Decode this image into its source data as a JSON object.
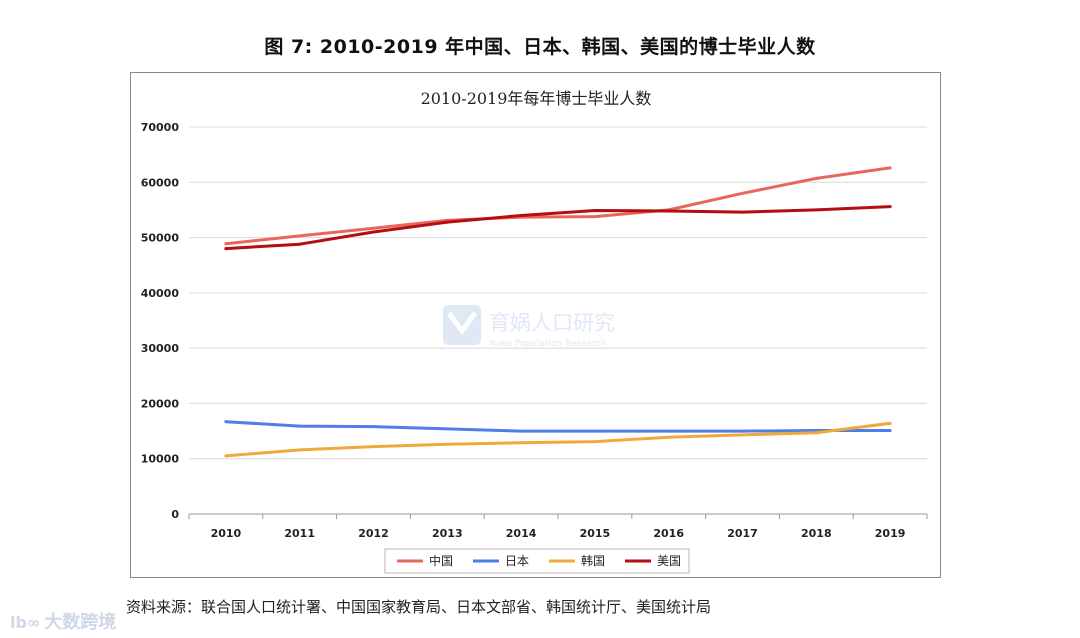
{
  "figure_title": "图 7: 2010-2019 年中国、日本、韩国、美国的博士毕业人数",
  "source_note": "资料来源：联合国人口统计署、中国国家教育局、日本文部省、韩国统计厅、美国统计局",
  "watermark": {
    "center_brand": "育娲人口研究",
    "center_sub": "Yuwa Population Research",
    "corner_brand": "大数跨境",
    "corner_logo": "lb∞"
  },
  "colors": {
    "china": "#e8675a",
    "japan": "#4f7ee8",
    "korea": "#f2a93b",
    "usa": "#b50d12",
    "grid": "#d9d9d9",
    "watermark": "#c9d6ee"
  },
  "chart_data": {
    "type": "line",
    "title": "2010-2019年每年博士毕业人数",
    "xlabel": "",
    "ylabel": "",
    "ylim": [
      0,
      70000
    ],
    "yticks": [
      "0",
      "10000",
      "20000",
      "30000",
      "40000",
      "50000",
      "60000",
      "70000"
    ],
    "categories": [
      "2010",
      "2011",
      "2012",
      "2013",
      "2014",
      "2015",
      "2016",
      "2017",
      "2018",
      "2019"
    ],
    "grid": true,
    "legend_position": "bottom",
    "series": [
      {
        "name": "中国",
        "color_key": "china",
        "values": [
          48900,
          50300,
          51700,
          53100,
          53700,
          53800,
          55000,
          58000,
          60700,
          62600
        ]
      },
      {
        "name": "日本",
        "color_key": "japan",
        "values": [
          16700,
          15900,
          15800,
          15400,
          15000,
          15000,
          15000,
          15000,
          15100,
          15100
        ]
      },
      {
        "name": "韩国",
        "color_key": "korea",
        "values": [
          10500,
          11600,
          12200,
          12600,
          12900,
          13100,
          13900,
          14300,
          14700,
          16400
        ]
      },
      {
        "name": "美国",
        "color_key": "usa",
        "values": [
          48000,
          48800,
          51000,
          52800,
          54000,
          54900,
          54800,
          54600,
          55000,
          55600
        ]
      }
    ]
  }
}
